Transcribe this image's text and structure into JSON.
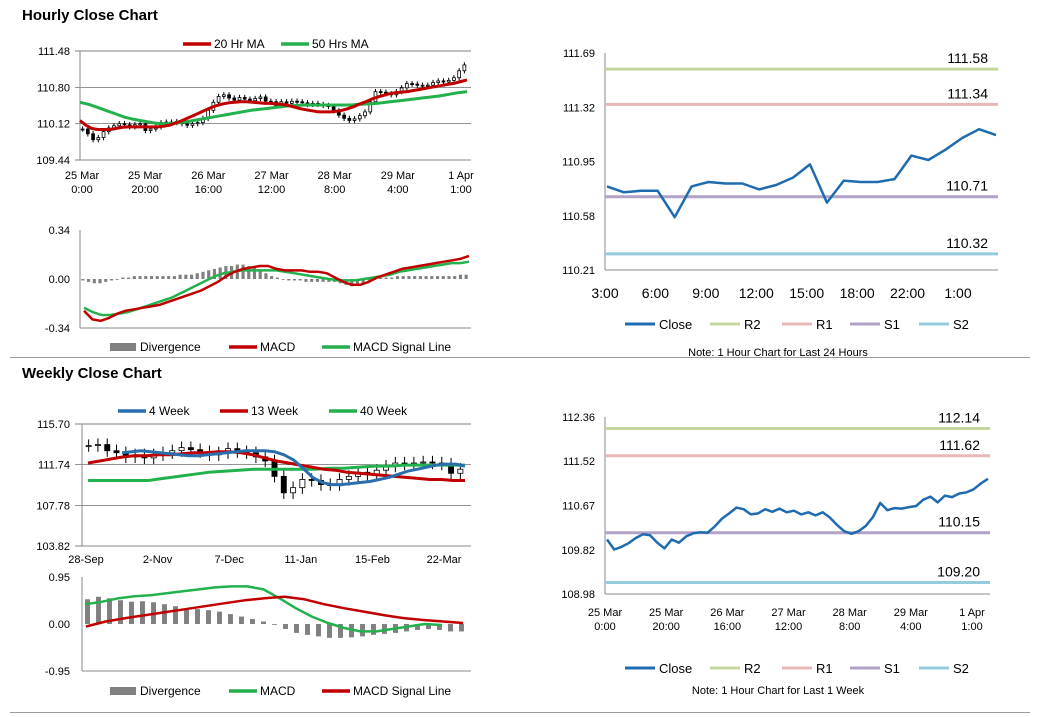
{
  "hourly_title": "Hourly Close Chart",
  "weekly_title": "Weekly Close Chart",
  "colors": {
    "red": "#c00000",
    "green": "#22b14c",
    "blue": "#2a6fad",
    "r2": "#c3d69b",
    "r1": "#e6b9b8",
    "s1": "#b3a2c7",
    "s2": "#93cddd",
    "close": "#1f6bb0",
    "grid": "#d0d0d0",
    "bar": "#808080"
  },
  "chart_data": [
    {
      "id": "hourly_price",
      "type": "candlestick",
      "legend": [
        "20 Hr MA",
        "50 Hrs MA"
      ],
      "yticks": [
        "111.48",
        "110.80",
        "110.12",
        "109.44"
      ],
      "ylim": [
        109.44,
        111.48
      ],
      "xticks": [
        [
          "25 Mar",
          "0:00"
        ],
        [
          "25 Mar",
          "20:00"
        ],
        [
          "26 Mar",
          "16:00"
        ],
        [
          "27 Mar",
          "12:00"
        ],
        [
          "28 Mar",
          "8:00"
        ],
        [
          "29 Mar",
          "4:00"
        ],
        [
          "1 Apr",
          "1:00"
        ]
      ],
      "close": [
        110.02,
        109.93,
        109.82,
        109.86,
        109.97,
        110.04,
        110.08,
        110.12,
        110.1,
        110.06,
        110.1,
        110.12,
        109.99,
        110.02,
        110.06,
        110.14,
        110.15,
        110.14,
        110.16,
        110.12,
        110.09,
        110.12,
        110.14,
        110.22,
        110.37,
        110.52,
        110.63,
        110.66,
        110.6,
        110.56,
        110.61,
        110.58,
        110.55,
        110.59,
        110.62,
        110.54,
        110.53,
        110.46,
        110.53,
        110.5,
        110.54,
        110.53,
        110.51,
        110.48,
        110.5,
        110.48,
        110.46,
        110.44,
        110.36,
        110.28,
        110.22,
        110.18,
        110.21,
        110.27,
        110.34,
        110.53,
        110.72,
        110.71,
        110.68,
        110.66,
        110.72,
        110.79,
        110.87,
        110.86,
        110.84,
        110.84,
        110.84,
        110.89,
        110.92,
        110.9,
        110.93,
        110.98,
        111.11,
        111.22
      ],
      "ma20": [
        110.18,
        110.09,
        110.03,
        110.01,
        110.01,
        110.01,
        110.03,
        110.05,
        110.06,
        110.06,
        110.06,
        110.06,
        110.06,
        110.06,
        110.07,
        110.09,
        110.13,
        110.17,
        110.22,
        110.27,
        110.32,
        110.37,
        110.42,
        110.46,
        110.49,
        110.51,
        110.52,
        110.53,
        110.53,
        110.52,
        110.51,
        110.5,
        110.5,
        110.49,
        110.48,
        110.46,
        110.43,
        110.4,
        110.38,
        110.36,
        110.34,
        110.34,
        110.34,
        110.35,
        110.37,
        110.4,
        110.44,
        110.49,
        110.53,
        110.58,
        110.62,
        110.65,
        110.68,
        110.7,
        110.71,
        110.72,
        110.74,
        110.76,
        110.78,
        110.8,
        110.82,
        110.84,
        110.86,
        110.88,
        110.91,
        110.94
      ],
      "ma50": [
        110.52,
        110.48,
        110.42,
        110.36,
        110.3,
        110.24,
        110.2,
        110.17,
        110.14,
        110.12,
        110.12,
        110.14,
        110.16,
        110.19,
        110.22,
        110.25,
        110.28,
        110.31,
        110.34,
        110.37,
        110.39,
        110.41,
        110.43,
        110.45,
        110.46,
        110.47,
        110.47,
        110.47,
        110.47,
        110.47,
        110.47,
        110.48,
        110.49,
        110.5,
        110.52,
        110.54,
        110.56,
        110.58,
        110.6,
        110.62,
        110.64,
        110.67,
        110.7,
        110.72
      ]
    },
    {
      "id": "hourly_macd",
      "type": "macd",
      "legend": [
        "Divergence",
        "MACD",
        "MACD Signal Line"
      ],
      "yticks": [
        "0.34",
        "0.00",
        "-0.34"
      ],
      "ylim": [
        -0.34,
        0.34
      ],
      "divergence": [
        -0.01,
        -0.02,
        -0.03,
        -0.03,
        -0.02,
        -0.01,
        0.0,
        0.01,
        0.01,
        0.02,
        0.02,
        0.02,
        0.02,
        0.02,
        0.02,
        0.02,
        0.02,
        0.03,
        0.03,
        0.03,
        0.04,
        0.05,
        0.06,
        0.07,
        0.08,
        0.09,
        0.09,
        0.1,
        0.1,
        0.09,
        0.08,
        0.06,
        0.04,
        0.02,
        0.01,
        0.0,
        -0.01,
        -0.01,
        -0.01,
        -0.02,
        -0.02,
        -0.02,
        -0.02,
        -0.02,
        -0.02,
        -0.03,
        -0.04,
        -0.05,
        -0.04,
        -0.03,
        -0.01,
        0.0,
        0.01,
        0.01,
        0.01,
        0.02,
        0.02,
        0.02,
        0.02,
        0.02,
        0.02,
        0.02,
        0.02,
        0.02,
        0.02,
        0.02,
        0.03,
        0.03
      ],
      "macd": [
        -0.22,
        -0.28,
        -0.29,
        -0.27,
        -0.24,
        -0.22,
        -0.21,
        -0.2,
        -0.19,
        -0.18,
        -0.16,
        -0.14,
        -0.12,
        -0.1,
        -0.08,
        -0.05,
        -0.02,
        0.02,
        0.05,
        0.07,
        0.08,
        0.09,
        0.09,
        0.07,
        0.06,
        0.06,
        0.06,
        0.05,
        0.05,
        0.04,
        0.01,
        -0.02,
        -0.04,
        -0.04,
        -0.02,
        0.01,
        0.03,
        0.05,
        0.07,
        0.08,
        0.09,
        0.1,
        0.11,
        0.12,
        0.13,
        0.14,
        0.16
      ],
      "signal": [
        -0.2,
        -0.23,
        -0.25,
        -0.25,
        -0.24,
        -0.23,
        -0.21,
        -0.19,
        -0.17,
        -0.15,
        -0.13,
        -0.1,
        -0.07,
        -0.04,
        -0.01,
        0.02,
        0.04,
        0.05,
        0.06,
        0.06,
        0.06,
        0.06,
        0.06,
        0.05,
        0.04,
        0.03,
        0.02,
        0.01,
        0.0,
        -0.01,
        -0.01,
        -0.01,
        0.0,
        0.01,
        0.02,
        0.03,
        0.05,
        0.06,
        0.07,
        0.08,
        0.09,
        0.1,
        0.11,
        0.11,
        0.12
      ]
    },
    {
      "id": "hourly_close_24h",
      "type": "line",
      "yticks": [
        "111.69",
        "111.32",
        "110.95",
        "110.58",
        "110.21"
      ],
      "ylim": [
        110.21,
        111.69
      ],
      "xticks": [
        "3:00",
        "6:00",
        "9:00",
        "12:00",
        "15:00",
        "18:00",
        "22:00",
        "1:00"
      ],
      "close": [
        110.78,
        110.74,
        110.75,
        110.75,
        110.57,
        110.78,
        110.81,
        110.8,
        110.8,
        110.76,
        110.79,
        110.84,
        110.93,
        110.67,
        110.82,
        110.81,
        110.81,
        110.83,
        110.99,
        110.96,
        111.03,
        111.11,
        111.17,
        111.13
      ],
      "levels": [
        {
          "name": "R2",
          "value": 111.58,
          "label": "111.58",
          "color": "#c3d69b"
        },
        {
          "name": "R1",
          "value": 111.34,
          "label": "111.34",
          "color": "#e6b9b8"
        },
        {
          "name": "S1",
          "value": 110.71,
          "label": "110.71",
          "color": "#b3a2c7"
        },
        {
          "name": "S2",
          "value": 110.32,
          "label": "110.32",
          "color": "#93cddd"
        }
      ],
      "legend": [
        "Close",
        "R2",
        "R1",
        "S1",
        "S2"
      ],
      "note": "Note: 1 Hour Chart for Last 24 Hours"
    },
    {
      "id": "weekly_price",
      "type": "candlestick",
      "legend": [
        "4 Week",
        "13 Week",
        "40 Week"
      ],
      "yticks": [
        "115.70",
        "111.74",
        "107.78",
        "103.82"
      ],
      "ylim": [
        103.82,
        115.7
      ],
      "xticks": [
        "28-Sep",
        "2-Nov",
        "7-Dec",
        "11-Jan",
        "15-Feb",
        "22-Mar"
      ],
      "close": [
        113.6,
        113.7,
        113.1,
        112.9,
        112.5,
        112.7,
        112.4,
        112.7,
        112.9,
        113.1,
        113.4,
        113.2,
        113.0,
        112.7,
        112.9,
        113.3,
        113.0,
        112.9,
        112.5,
        112.1,
        110.6,
        109.0,
        109.5,
        110.3,
        110.2,
        109.8,
        109.8,
        110.3,
        110.6,
        111.0,
        110.8,
        111.2,
        111.6,
        111.9,
        111.8,
        111.9,
        112.0,
        111.9,
        111.8,
        110.9,
        111.3
      ],
      "ma4": [
        112.9,
        113.0,
        113.1,
        113.0,
        112.9,
        112.8,
        112.7,
        112.6,
        112.6,
        112.7,
        112.8,
        112.9,
        113.0,
        113.1,
        113.1,
        113.1,
        113.0,
        112.7,
        112.2,
        111.4,
        110.5,
        110.0,
        109.8,
        109.8,
        109.9,
        110.0,
        110.1,
        110.3,
        110.5,
        110.8,
        111.1,
        111.3,
        111.5,
        111.7,
        111.8,
        111.8,
        111.6
      ],
      "ma13": [
        111.9,
        112.1,
        112.3,
        112.5,
        112.6,
        112.6,
        112.7,
        112.7,
        112.8,
        112.9,
        112.9,
        113.0,
        113.0,
        112.9,
        112.7,
        112.4,
        112.1,
        111.9,
        111.7,
        111.5,
        111.3,
        111.2,
        111.0,
        110.9,
        110.8,
        110.7,
        110.6,
        110.5,
        110.4,
        110.3,
        110.3,
        110.2,
        110.2
      ],
      "ma40": [
        110.2,
        110.2,
        110.2,
        110.2,
        110.2,
        110.4,
        110.6,
        110.8,
        111.0,
        111.1,
        111.2,
        111.3,
        111.3,
        111.3,
        111.3,
        111.3,
        111.4,
        111.4,
        111.5,
        111.6,
        111.6,
        111.7,
        111.7,
        111.7,
        111.7,
        111.7
      ]
    },
    {
      "id": "weekly_macd",
      "type": "macd",
      "legend": [
        "Divergence",
        "MACD",
        "MACD Signal Line"
      ],
      "yticks": [
        "0.95",
        "0.00",
        "-0.95"
      ],
      "ylim": [
        -0.95,
        0.95
      ],
      "divergence": [
        0.5,
        0.55,
        0.52,
        0.48,
        0.45,
        0.46,
        0.44,
        0.4,
        0.36,
        0.32,
        0.3,
        0.28,
        0.25,
        0.2,
        0.15,
        0.1,
        0.05,
        0.0,
        -0.1,
        -0.18,
        -0.22,
        -0.25,
        -0.28,
        -0.28,
        -0.27,
        -0.25,
        -0.22,
        -0.2,
        -0.18,
        -0.15,
        -0.12,
        -0.1,
        -0.12,
        -0.15,
        -0.15
      ],
      "macd": [
        0.4,
        0.45,
        0.52,
        0.56,
        0.58,
        0.62,
        0.66,
        0.7,
        0.74,
        0.76,
        0.76,
        0.7,
        0.52,
        0.32,
        0.15,
        0.02,
        -0.08,
        -0.15,
        -0.15,
        -0.1,
        -0.05,
        0.0,
        -0.02
      ],
      "signal": [
        -0.05,
        0.05,
        0.12,
        0.18,
        0.24,
        0.3,
        0.36,
        0.42,
        0.48,
        0.52,
        0.55,
        0.5,
        0.4,
        0.32,
        0.25,
        0.18,
        0.12,
        0.08,
        0.05,
        0.02
      ]
    },
    {
      "id": "weekly_close_1w",
      "type": "line",
      "yticks": [
        "112.36",
        "111.52",
        "110.67",
        "109.82",
        "108.98"
      ],
      "ylim": [
        108.98,
        112.36
      ],
      "xticks": [
        [
          "25 Mar",
          "0:00"
        ],
        [
          "25 Mar",
          "20:00"
        ],
        [
          "26 Mar",
          "16:00"
        ],
        [
          "27 Mar",
          "12:00"
        ],
        [
          "28 Mar",
          "8:00"
        ],
        [
          "29 Mar",
          "4:00"
        ],
        [
          "1 Apr",
          "1:00"
        ]
      ],
      "close": [
        110.02,
        109.83,
        109.88,
        109.95,
        110.05,
        110.12,
        110.1,
        109.96,
        109.85,
        110.02,
        109.96,
        110.08,
        110.14,
        110.16,
        110.15,
        110.27,
        110.42,
        110.52,
        110.63,
        110.6,
        110.5,
        110.52,
        110.6,
        110.55,
        110.61,
        110.54,
        110.57,
        110.5,
        110.54,
        110.48,
        110.54,
        110.44,
        110.3,
        110.18,
        110.13,
        110.18,
        110.28,
        110.45,
        110.72,
        110.58,
        110.62,
        110.61,
        110.64,
        110.66,
        110.78,
        110.84,
        110.73,
        110.86,
        110.83,
        110.9,
        110.92,
        110.98,
        111.09,
        111.18
      ],
      "levels": [
        {
          "name": "R2",
          "value": 112.14,
          "label": "112.14",
          "color": "#c3d69b"
        },
        {
          "name": "R1",
          "value": 111.62,
          "label": "111.62",
          "color": "#e6b9b8"
        },
        {
          "name": "S1",
          "value": 110.15,
          "label": "110.15",
          "color": "#b3a2c7"
        },
        {
          "name": "S2",
          "value": 109.2,
          "label": "109.20",
          "color": "#93cddd"
        }
      ],
      "legend": [
        "Close",
        "R2",
        "R1",
        "S1",
        "S2"
      ],
      "note": "Note: 1 Hour Chart for Last 1 Week"
    }
  ]
}
